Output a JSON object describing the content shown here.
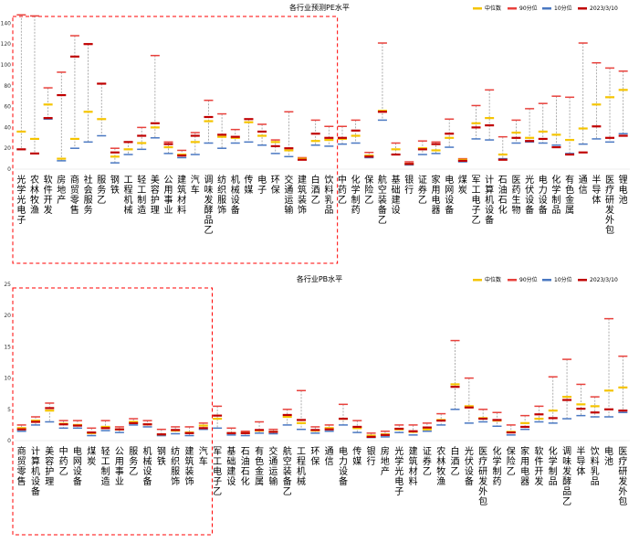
{
  "legend": {
    "median": "中位数",
    "p90": "90分位",
    "p10": "10分位",
    "current": "2023/3/10"
  },
  "colors": {
    "median": "#f5c400",
    "p90": "#e8413c",
    "p10": "#4a78c2",
    "current": "#c00000",
    "highlight_box": "#ff0000",
    "range_line": "#999999"
  },
  "chart_data": [
    {
      "type": "range",
      "title": "各行业预测PE水平",
      "ylim": [
        0,
        150
      ],
      "yticks": [
        0,
        20,
        40,
        60,
        80,
        100,
        120,
        140
      ],
      "highlighted_count": 24,
      "categories": [
        "光学光电子",
        "农林牧渔",
        "软件开发",
        "房地产",
        "商贸零售",
        "社会服务",
        "服务乙",
        "钢铁",
        "工程机械",
        "轻工制造",
        "美容护理",
        "公用事业",
        "建筑材料",
        "汽车",
        "调味发酵品乙",
        "纺织服饰",
        "机械设备",
        "传媒",
        "电子",
        "环保",
        "交通运输",
        "建筑装饰",
        "白酒乙",
        "饮料乳品",
        "中药乙",
        "化学制药",
        "保险乙",
        "航空装备乙",
        "基础建设",
        "银行",
        "证券乙",
        "家用电器",
        "电网设备",
        "煤炭",
        "军工电子乙",
        "计算机设备",
        "石油石化",
        "医药生物",
        "光伏设备",
        "电力设备",
        "化学制品",
        "有色金属",
        "通信",
        "半导体",
        "医疗研发外包",
        "锂电池"
      ],
      "p90": [
        148,
        147,
        78,
        93,
        128,
        120,
        82,
        20,
        26,
        40,
        109,
        26,
        18,
        35,
        66,
        53,
        38,
        48,
        43,
        28,
        55,
        11,
        47,
        41,
        41,
        47,
        16,
        121,
        25,
        7,
        27,
        26,
        48,
        10,
        61,
        76,
        31,
        47,
        58,
        63,
        70,
        69,
        121,
        102,
        97,
        94
      ],
      "p10": [
        19,
        15,
        48,
        8,
        20,
        26,
        32,
        6,
        14,
        19,
        30,
        15,
        11,
        14,
        25,
        20,
        25,
        26,
        23,
        15,
        12,
        9,
        23,
        22,
        24,
        25,
        11,
        47,
        14,
        4,
        14,
        15,
        21,
        7,
        29,
        28,
        10,
        25,
        26,
        25,
        23,
        15,
        24,
        29,
        26,
        34
      ],
      "median": [
        36,
        29,
        62,
        10,
        29,
        55,
        48,
        12,
        19,
        25,
        40,
        21,
        14,
        26,
        46,
        31,
        30,
        45,
        32,
        26,
        18,
        10,
        27,
        28,
        29,
        32,
        13,
        56,
        19,
        5,
        20,
        18,
        30,
        9,
        44,
        49,
        14,
        35,
        30,
        36,
        33,
        28,
        39,
        62,
        69,
        76
      ],
      "current": [
        19,
        15,
        49,
        71,
        108,
        120,
        82,
        16,
        26,
        32,
        44,
        24,
        13,
        32,
        50,
        33,
        31,
        48,
        36,
        22,
        20,
        9,
        34,
        30,
        30,
        37,
        12,
        55,
        14,
        5,
        19,
        24,
        34,
        8,
        40,
        42,
        9,
        30,
        27,
        29,
        21,
        14,
        16,
        41,
        30,
        32
      ]
    },
    {
      "type": "range",
      "title": "各行业PB水平",
      "ylim": [
        0,
        25
      ],
      "yticks": [
        0,
        5,
        10,
        15,
        20,
        25
      ],
      "highlighted_count": 14,
      "categories": [
        "商贸零售",
        "计算机设备",
        "美容护理",
        "中药乙",
        "电网设备",
        "煤炭",
        "轻工制造",
        "公用事业",
        "服务乙",
        "机械设备",
        "钢铁",
        "纺织服饰",
        "建筑装饰",
        "汽车",
        "军工电子乙",
        "基础建设",
        "石油石化",
        "有色金属",
        "交通运输",
        "航空装备乙",
        "工程机械",
        "环保",
        "通信",
        "电力设备",
        "传媒",
        "银行",
        "房地产",
        "光学光电子",
        "建筑材料",
        "证券乙",
        "农林牧渔",
        "白酒乙",
        "光伏设备",
        "医疗研发外包",
        "化学制药",
        "保险乙",
        "家用电器",
        "软件开发",
        "化学制品",
        "调味发酵品乙",
        "半导体",
        "饮料乳品",
        "电池",
        "医疗研发外包"
      ],
      "p90": [
        2.5,
        3.8,
        6.0,
        3.2,
        3.2,
        2.0,
        3.2,
        2.2,
        3.5,
        3.2,
        1.8,
        2.2,
        2.2,
        2.8,
        5.5,
        2.0,
        1.5,
        3.0,
        1.8,
        5.0,
        8.0,
        2.2,
        2.5,
        5.8,
        3.2,
        1.2,
        1.5,
        2.5,
        2.5,
        2.8,
        4.3,
        16.0,
        10.0,
        5.0,
        4.5,
        2.5,
        4.0,
        5.5,
        10.2,
        13.0,
        9.0,
        7.0,
        19.5,
        13.5
      ],
      "p10": [
        1.5,
        2.5,
        3.0,
        2.0,
        2.0,
        0.8,
        1.6,
        1.3,
        2.5,
        2.2,
        0.8,
        1.1,
        0.8,
        1.8,
        2.0,
        0.9,
        0.8,
        1.2,
        1.1,
        2.5,
        1.8,
        1.2,
        1.5,
        2.5,
        1.3,
        0.5,
        0.6,
        1.3,
        0.9,
        1.5,
        2.5,
        5.0,
        2.8,
        3.0,
        2.3,
        0.9,
        1.8,
        3.0,
        2.8,
        3.5,
        4.0,
        3.8,
        3.8,
        4.5
      ],
      "median": [
        2.0,
        3.2,
        4.8,
        2.7,
        2.5,
        1.2,
        2.2,
        1.8,
        3.0,
        2.6,
        1.0,
        1.6,
        1.3,
        2.4,
        3.5,
        1.2,
        1.2,
        1.6,
        1.4,
        3.8,
        2.8,
        1.6,
        2.0,
        3.5,
        2.0,
        0.8,
        1.0,
        1.8,
        1.4,
        1.8,
        3.3,
        9.0,
        5.5,
        3.6,
        3.2,
        1.4,
        2.8,
        3.5,
        4.8,
        7.0,
        5.8,
        5.5,
        8.0,
        8.5
      ],
      "current": [
        1.8,
        3.0,
        5.2,
        2.6,
        2.4,
        1.3,
        2.0,
        1.8,
        2.8,
        2.6,
        1.0,
        1.7,
        1.2,
        2.0,
        4.0,
        1.2,
        1.2,
        1.7,
        1.4,
        4.1,
        3.3,
        1.7,
        1.8,
        3.5,
        2.2,
        0.6,
        0.9,
        1.9,
        1.5,
        2.1,
        3.2,
        8.6,
        5.3,
        3.5,
        3.3,
        1.3,
        2.2,
        4.2,
        3.6,
        6.5,
        5.1,
        4.5,
        5.0,
        4.8
      ]
    }
  ]
}
